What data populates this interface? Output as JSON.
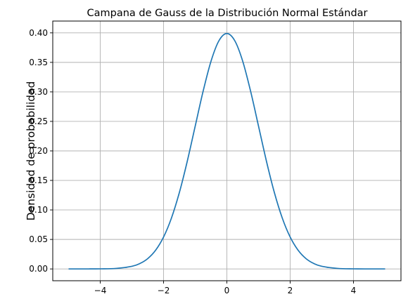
{
  "chart_data": {
    "type": "line",
    "title": "Campana de Gauss de la Distribución Normal Estándar",
    "xlabel": "",
    "ylabel": "Densidad de probabilidad",
    "xlim": [
      -5.5,
      5.5
    ],
    "ylim": [
      -0.02,
      0.42
    ],
    "x_ticks": [
      -4,
      -2,
      0,
      2,
      4
    ],
    "x_tick_labels": [
      "−4",
      "−2",
      "0",
      "2",
      "4"
    ],
    "y_ticks": [
      0.0,
      0.05,
      0.1,
      0.15,
      0.2,
      0.25,
      0.3,
      0.35,
      0.4
    ],
    "y_tick_labels": [
      "0.00",
      "0.05",
      "0.10",
      "0.15",
      "0.20",
      "0.25",
      "0.30",
      "0.35",
      "0.40"
    ],
    "grid": true,
    "legend": "none",
    "color": "#1f77b4",
    "series": [
      {
        "x": [
          -5,
          -4.5,
          -4,
          -3.5,
          -3,
          -2.75,
          -2.5,
          -2.25,
          -2,
          -1.75,
          -1.5,
          -1.25,
          -1,
          -0.75,
          -0.5,
          -0.25,
          0,
          0.25,
          0.5,
          0.75,
          1,
          1.25,
          1.5,
          1.75,
          2,
          2.25,
          2.5,
          2.75,
          3,
          3.5,
          4,
          4.5,
          5
        ],
        "y": [
          1.5e-06,
          1.6e-05,
          0.000134,
          0.000873,
          0.00443,
          0.00909,
          0.0175,
          0.0317,
          0.054,
          0.0863,
          0.1295,
          0.1826,
          0.242,
          0.3011,
          0.3521,
          0.3867,
          0.3989,
          0.3867,
          0.3521,
          0.3011,
          0.242,
          0.1826,
          0.1295,
          0.0863,
          0.054,
          0.0317,
          0.0175,
          0.00909,
          0.00443,
          0.000873,
          0.000134,
          1.6e-05,
          1.5e-06
        ]
      }
    ]
  }
}
